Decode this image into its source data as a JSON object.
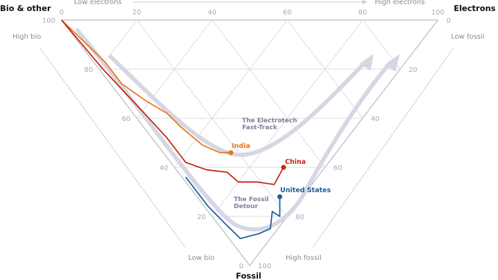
{
  "chart_data": {
    "type": "ternary-line",
    "axes": {
      "bio": {
        "title": "Bio & other",
        "low_label": "Low bio",
        "high_label": "High bio",
        "ticks": [
          "100",
          "80",
          "60",
          "40",
          "20",
          "0"
        ]
      },
      "electrons": {
        "title": "Electrons",
        "low_label": "Low electrons",
        "high_label": "High electrons",
        "ticks": [
          "0",
          "20",
          "40",
          "60",
          "80",
          "100"
        ]
      },
      "fossil": {
        "title": "Fossil",
        "low_label": "Low fossil",
        "high_label": "High fossil",
        "ticks": [
          "0",
          "20",
          "40",
          "60",
          "80",
          "100"
        ]
      }
    },
    "grid": true,
    "annotations": [
      {
        "lines": [
          "The Electrotech",
          "Fast-Track"
        ]
      },
      {
        "lines": [
          "The Fossil",
          "Detour"
        ]
      }
    ],
    "series": [
      {
        "name": "India",
        "color": "#e8761e",
        "points": [
          {
            "bio": 100,
            "electrons": 0,
            "fossil": 0
          },
          {
            "bio": 80,
            "electrons": 3,
            "fossil": 17
          },
          {
            "bio": 71,
            "electrons": 3,
            "fossil": 26
          },
          {
            "bio": 61,
            "electrons": 6,
            "fossil": 33
          },
          {
            "bio": 53,
            "electrons": 9,
            "fossil": 38
          },
          {
            "bio": 46,
            "electrons": 10,
            "fossil": 44
          },
          {
            "bio": 37,
            "electrons": 12,
            "fossil": 51
          },
          {
            "bio": 31,
            "electrons": 15,
            "fossil": 54
          },
          {
            "bio": 28,
            "electrons": 18,
            "fossil": 54
          }
        ]
      },
      {
        "name": "China",
        "color": "#c0290e",
        "points": [
          {
            "bio": 100,
            "electrons": 0,
            "fossil": 0
          },
          {
            "bio": 79,
            "electrons": 1,
            "fossil": 20
          },
          {
            "bio": 59,
            "electrons": 3,
            "fossil": 38
          },
          {
            "bio": 48,
            "electrons": 4,
            "fossil": 48
          },
          {
            "bio": 38,
            "electrons": 4,
            "fossil": 58
          },
          {
            "bio": 31,
            "electrons": 8,
            "fossil": 61
          },
          {
            "bio": 25,
            "electrons": 13,
            "fossil": 62
          },
          {
            "bio": 20,
            "electrons": 14,
            "fossil": 66
          },
          {
            "bio": 15,
            "electrons": 19,
            "fossil": 66
          },
          {
            "bio": 10,
            "electrons": 23,
            "fossil": 67
          },
          {
            "bio": 11,
            "electrons": 29,
            "fossil": 60
          }
        ]
      },
      {
        "name": "United States",
        "color": "#1d5ea0",
        "points": [
          {
            "bio": 35,
            "electrons": 1,
            "fossil": 64
          },
          {
            "bio": 23,
            "electrons": 1,
            "fossil": 76
          },
          {
            "bio": 15,
            "electrons": 2,
            "fossil": 83
          },
          {
            "bio": 8,
            "electrons": 3,
            "fossil": 89
          },
          {
            "bio": 4,
            "electrons": 9,
            "fossil": 87
          },
          {
            "bio": 2,
            "electrons": 13,
            "fossil": 85
          },
          {
            "bio": 5,
            "electrons": 17,
            "fossil": 78
          },
          {
            "bio": 2,
            "electrons": 18,
            "fossil": 80
          },
          {
            "bio": 6,
            "electrons": 22,
            "fossil": 72
          }
        ]
      }
    ]
  }
}
